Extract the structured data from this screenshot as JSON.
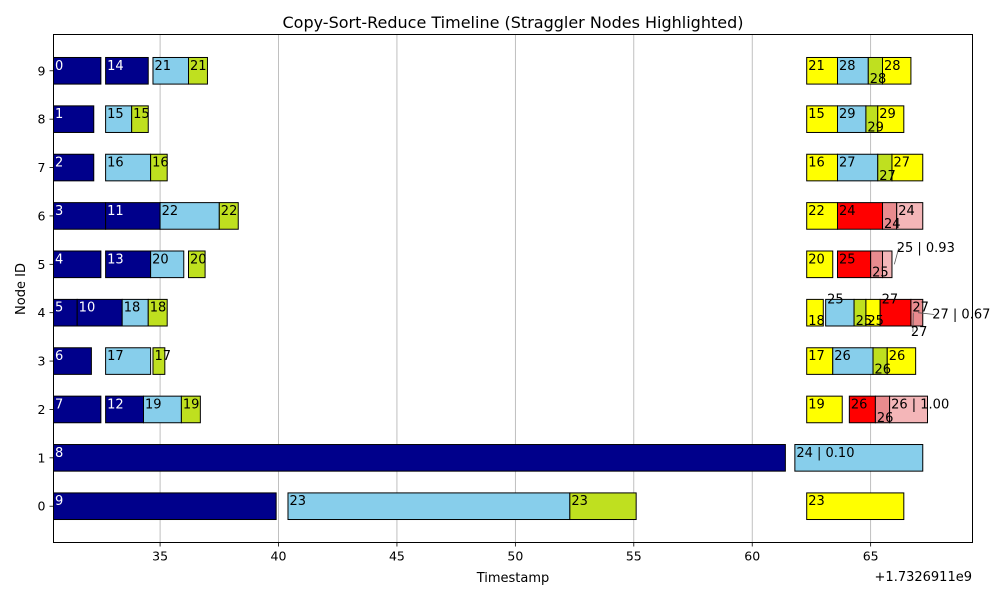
{
  "chart_data": {
    "type": "gantt",
    "title": "Copy-Sort-Reduce Timeline (Straggler Nodes Highlighted)",
    "xlabel": "Timestamp",
    "ylabel": "Node ID",
    "x_offset_label": "+1.7326911e9",
    "xlim": [
      30.5,
      69.3
    ],
    "ylim": [
      -0.75,
      9.75
    ],
    "xticks": [
      35,
      40,
      45,
      50,
      55,
      60,
      65
    ],
    "x_grid": true,
    "y_grid": false,
    "yticks": [
      {
        "value": 0,
        "label": "0",
        "straggler": true
      },
      {
        "value": 1,
        "label": "1",
        "straggler": true
      },
      {
        "value": 2,
        "label": "2",
        "straggler": false
      },
      {
        "value": 3,
        "label": "3",
        "straggler": false
      },
      {
        "value": 4,
        "label": "4",
        "straggler": false
      },
      {
        "value": 5,
        "label": "5",
        "straggler": false
      },
      {
        "value": 6,
        "label": "6",
        "straggler": false
      },
      {
        "value": 7,
        "label": "7",
        "straggler": false
      },
      {
        "value": 8,
        "label": "8",
        "straggler": false
      },
      {
        "value": 9,
        "label": "9",
        "straggler": false
      }
    ],
    "colors": {
      "copy": "#00008b",
      "sort": "#87ceeb",
      "reduce": "#bfe01f",
      "late_task": "#ffff00",
      "straggler": "#ff0000",
      "straggler_light": "#f4b6b8",
      "straggler_mid": "#e98b8e",
      "straggler_tick": "#ff0000"
    },
    "bars": [
      {
        "node": 9,
        "start": 30.5,
        "end": 32.5,
        "color": "copy",
        "label": "0",
        "text_color": "#ffffff"
      },
      {
        "node": 9,
        "start": 32.7,
        "end": 34.5,
        "color": "copy",
        "label": "14",
        "text_color": "#ffffff"
      },
      {
        "node": 9,
        "start": 34.7,
        "end": 36.2,
        "color": "sort",
        "label": "21"
      },
      {
        "node": 9,
        "start": 36.2,
        "end": 37.0,
        "color": "reduce",
        "label": "21"
      },
      {
        "node": 9,
        "start": 62.3,
        "end": 63.6,
        "color": "late_task",
        "label": "21"
      },
      {
        "node": 9,
        "start": 63.6,
        "end": 64.9,
        "color": "sort",
        "label": "28"
      },
      {
        "node": 9,
        "start": 64.9,
        "end": 65.5,
        "color": "reduce",
        "label": "28",
        "label_low": true
      },
      {
        "node": 9,
        "start": 65.5,
        "end": 66.7,
        "color": "late_task",
        "label": "28"
      },
      {
        "node": 8,
        "start": 30.5,
        "end": 32.2,
        "color": "copy",
        "label": "1",
        "text_color": "#ffffff"
      },
      {
        "node": 8,
        "start": 32.7,
        "end": 33.8,
        "color": "sort",
        "label": "15"
      },
      {
        "node": 8,
        "start": 33.8,
        "end": 34.5,
        "color": "reduce",
        "label": "15"
      },
      {
        "node": 8,
        "start": 62.3,
        "end": 63.6,
        "color": "late_task",
        "label": "15"
      },
      {
        "node": 8,
        "start": 63.6,
        "end": 64.8,
        "color": "sort",
        "label": "29"
      },
      {
        "node": 8,
        "start": 64.8,
        "end": 65.3,
        "color": "reduce",
        "label": "29",
        "label_low": true
      },
      {
        "node": 8,
        "start": 65.3,
        "end": 66.4,
        "color": "late_task",
        "label": "29"
      },
      {
        "node": 7,
        "start": 30.5,
        "end": 32.2,
        "color": "copy",
        "label": "2",
        "text_color": "#ffffff"
      },
      {
        "node": 7,
        "start": 32.7,
        "end": 34.6,
        "color": "sort",
        "label": "16"
      },
      {
        "node": 7,
        "start": 34.6,
        "end": 35.3,
        "color": "reduce",
        "label": "16"
      },
      {
        "node": 7,
        "start": 62.3,
        "end": 63.6,
        "color": "late_task",
        "label": "16"
      },
      {
        "node": 7,
        "start": 63.6,
        "end": 65.3,
        "color": "sort",
        "label": "27"
      },
      {
        "node": 7,
        "start": 65.3,
        "end": 65.9,
        "color": "reduce",
        "label": "27",
        "label_low": true
      },
      {
        "node": 7,
        "start": 65.9,
        "end": 67.2,
        "color": "late_task",
        "label": "27"
      },
      {
        "node": 6,
        "start": 30.5,
        "end": 32.7,
        "color": "copy",
        "label": "3",
        "text_color": "#ffffff"
      },
      {
        "node": 6,
        "start": 32.7,
        "end": 35.0,
        "color": "copy",
        "label": "11",
        "text_color": "#ffffff"
      },
      {
        "node": 6,
        "start": 35.0,
        "end": 37.5,
        "color": "sort",
        "label": "22"
      },
      {
        "node": 6,
        "start": 37.5,
        "end": 38.3,
        "color": "reduce",
        "label": "22"
      },
      {
        "node": 6,
        "start": 62.3,
        "end": 63.6,
        "color": "late_task",
        "label": "22"
      },
      {
        "node": 6,
        "start": 63.6,
        "end": 65.5,
        "color": "straggler",
        "label": "24"
      },
      {
        "node": 6,
        "start": 65.5,
        "end": 66.1,
        "color": "straggler_mid",
        "label": "24",
        "label_low": true
      },
      {
        "node": 6,
        "start": 66.1,
        "end": 67.2,
        "color": "straggler_light",
        "label": "24"
      },
      {
        "node": 5,
        "start": 30.5,
        "end": 32.5,
        "color": "copy",
        "label": "4",
        "text_color": "#ffffff"
      },
      {
        "node": 5,
        "start": 32.7,
        "end": 34.6,
        "color": "copy",
        "label": "13",
        "text_color": "#ffffff"
      },
      {
        "node": 5,
        "start": 34.6,
        "end": 36.0,
        "color": "sort",
        "label": "20"
      },
      {
        "node": 5,
        "start": 36.2,
        "end": 36.9,
        "color": "reduce",
        "label": "20"
      },
      {
        "node": 5,
        "start": 62.3,
        "end": 63.4,
        "color": "late_task",
        "label": "20"
      },
      {
        "node": 5,
        "start": 63.6,
        "end": 65.0,
        "color": "straggler",
        "label": "25"
      },
      {
        "node": 5,
        "start": 65.0,
        "end": 65.5,
        "color": "straggler_mid",
        "label": "25",
        "label_low": true
      },
      {
        "node": 5,
        "start": 65.5,
        "end": 65.9,
        "color": "straggler_light",
        "label": ""
      },
      {
        "node": 4,
        "start": 30.5,
        "end": 31.5,
        "color": "copy",
        "label": "5",
        "text_color": "#ffffff"
      },
      {
        "node": 4,
        "start": 31.5,
        "end": 33.4,
        "color": "copy",
        "label": "10",
        "text_color": "#ffffff"
      },
      {
        "node": 4,
        "start": 33.4,
        "end": 34.5,
        "color": "sort",
        "label": "18"
      },
      {
        "node": 4,
        "start": 34.5,
        "end": 35.3,
        "color": "reduce",
        "label": "18"
      },
      {
        "node": 4,
        "start": 62.3,
        "end": 63.0,
        "color": "late_task",
        "label": "18",
        "label_low": true
      },
      {
        "node": 4,
        "start": 63.1,
        "end": 64.3,
        "color": "sort",
        "label": "25",
        "label_high": true
      },
      {
        "node": 4,
        "start": 64.3,
        "end": 64.8,
        "color": "reduce",
        "label": "25",
        "label_low": true
      },
      {
        "node": 4,
        "start": 64.8,
        "end": 65.4,
        "color": "late_task",
        "label": "25",
        "label_low": true
      },
      {
        "node": 4,
        "start": 65.4,
        "end": 66.7,
        "color": "straggler",
        "label": "27",
        "label_high": true
      },
      {
        "node": 4,
        "start": 66.7,
        "end": 67.2,
        "color": "straggler_mid",
        "label": "27"
      },
      {
        "node": 3,
        "start": 30.5,
        "end": 32.1,
        "color": "copy",
        "label": "6",
        "text_color": "#ffffff"
      },
      {
        "node": 3,
        "start": 32.7,
        "end": 34.6,
        "color": "sort",
        "label": "17"
      },
      {
        "node": 3,
        "start": 34.7,
        "end": 35.2,
        "color": "reduce",
        "label": "17"
      },
      {
        "node": 3,
        "start": 62.3,
        "end": 63.4,
        "color": "late_task",
        "label": "17"
      },
      {
        "node": 3,
        "start": 63.4,
        "end": 65.1,
        "color": "sort",
        "label": "26"
      },
      {
        "node": 3,
        "start": 65.1,
        "end": 65.7,
        "color": "reduce",
        "label": "26",
        "label_low": true
      },
      {
        "node": 3,
        "start": 65.7,
        "end": 66.9,
        "color": "late_task",
        "label": "26"
      },
      {
        "node": 2,
        "start": 30.5,
        "end": 32.5,
        "color": "copy",
        "label": "7",
        "text_color": "#ffffff"
      },
      {
        "node": 2,
        "start": 32.7,
        "end": 34.3,
        "color": "copy",
        "label": "12",
        "text_color": "#ffffff"
      },
      {
        "node": 2,
        "start": 34.3,
        "end": 35.9,
        "color": "sort",
        "label": "19"
      },
      {
        "node": 2,
        "start": 35.9,
        "end": 36.7,
        "color": "reduce",
        "label": "19"
      },
      {
        "node": 2,
        "start": 62.3,
        "end": 63.8,
        "color": "late_task",
        "label": "19"
      },
      {
        "node": 2,
        "start": 64.1,
        "end": 65.2,
        "color": "straggler",
        "label": "26"
      },
      {
        "node": 2,
        "start": 65.2,
        "end": 65.8,
        "color": "straggler_mid",
        "label": "26",
        "label_low": true
      },
      {
        "node": 2,
        "start": 65.8,
        "end": 67.4,
        "color": "straggler_light",
        "label": "26 | 1.00"
      },
      {
        "node": 1,
        "start": 30.5,
        "end": 61.4,
        "color": "copy",
        "label": "8",
        "text_color": "#ffffff"
      },
      {
        "node": 1,
        "start": 61.8,
        "end": 67.2,
        "color": "sort",
        "label": "24 | 0.10"
      },
      {
        "node": 0,
        "start": 30.5,
        "end": 39.9,
        "color": "copy",
        "label": "9",
        "text_color": "#ffffff"
      },
      {
        "node": 0,
        "start": 40.4,
        "end": 52.3,
        "color": "sort",
        "label": "23"
      },
      {
        "node": 0,
        "start": 52.3,
        "end": 55.1,
        "color": "reduce",
        "label": "23"
      },
      {
        "node": 0,
        "start": 62.3,
        "end": 66.4,
        "color": "late_task",
        "label": "23"
      }
    ],
    "annotations": [
      {
        "text": "25 | 0.93",
        "x": 66.0,
        "y": 5.0,
        "text_x": 66.1,
        "text_y": 5.25
      },
      {
        "text": "27 | 0.67",
        "x": 67.0,
        "y": 4.0,
        "text_x": 67.6,
        "text_y": 3.88
      },
      {
        "text": "27",
        "x": 66.8,
        "y": 4.0,
        "text_x": 66.7,
        "text_y": 3.52
      }
    ]
  }
}
